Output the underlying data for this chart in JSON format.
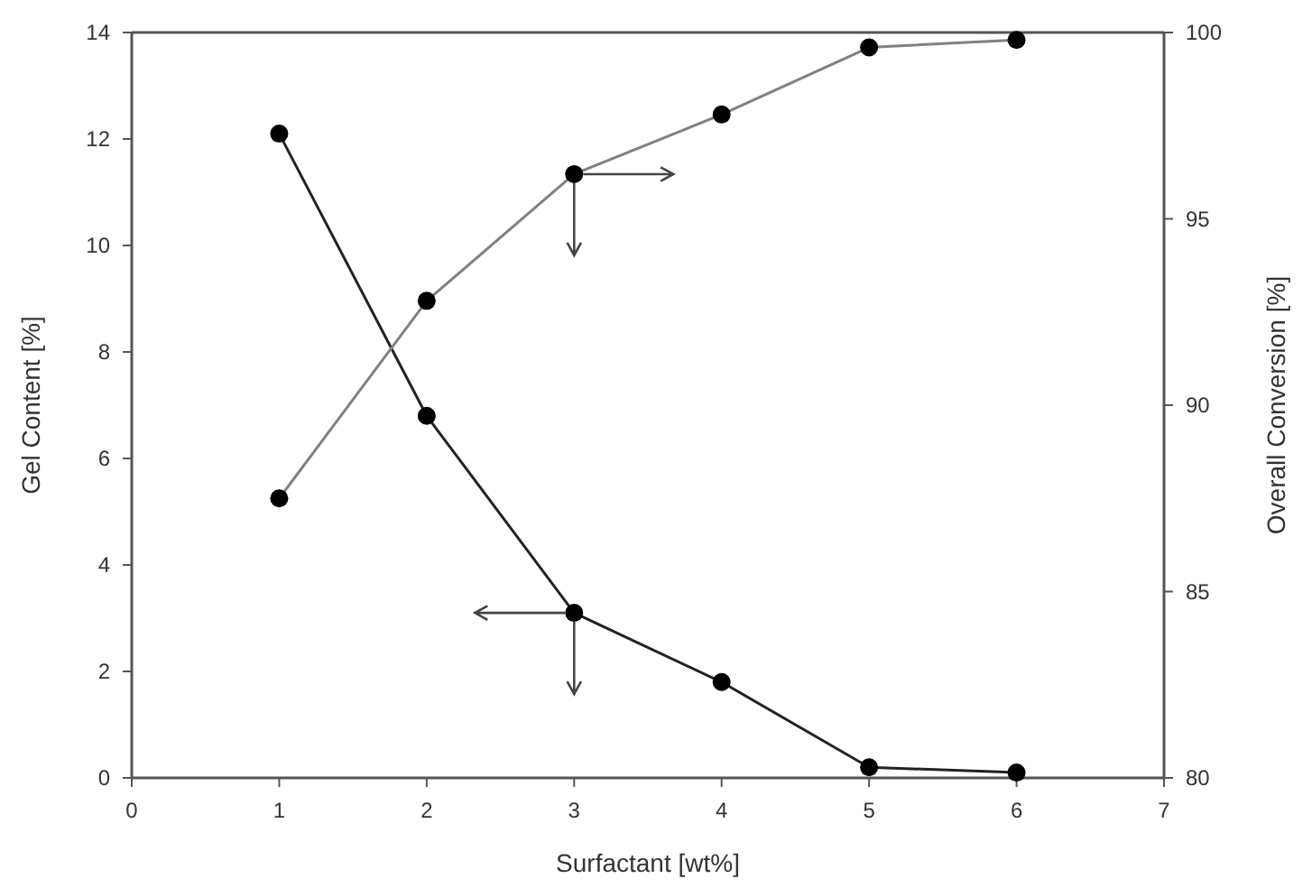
{
  "chart_data": {
    "type": "line",
    "xlabel": "Surfactant [wt%]",
    "ylabel": "Gel Content [%]",
    "y2label": "Overall Conversion [%]",
    "x": [
      1,
      2,
      3,
      4,
      5,
      6
    ],
    "series": [
      {
        "color": "#222222",
        "values": [
          12.1,
          6.8,
          3.1,
          1.8,
          0.2,
          0.1
        ]
      },
      {
        "color": "#808080",
        "axis": "y2",
        "values": [
          87.5,
          92.8,
          96.2,
          97.8,
          99.6,
          99.8
        ]
      }
    ],
    "xlim": [
      0,
      7
    ],
    "xticks": [
      0,
      1,
      2,
      3,
      4,
      5,
      6,
      7
    ],
    "ylim": [
      0,
      14
    ],
    "yticks": [
      0,
      2,
      4,
      6,
      8,
      10,
      12,
      14
    ],
    "y2lim": [
      80,
      100
    ],
    "y2ticks": [
      80,
      85,
      90,
      95,
      100
    ],
    "marker": "circle",
    "line_style": "solid"
  }
}
